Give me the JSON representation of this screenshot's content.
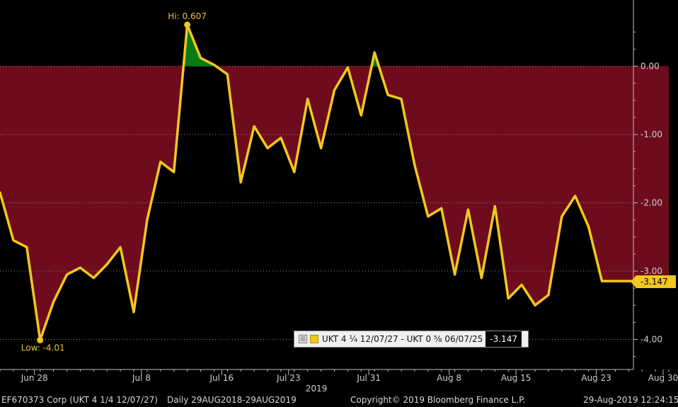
{
  "chart_data": {
    "type": "area",
    "title": "",
    "xlabel": "",
    "ylabel": "",
    "ylim": [
      -4.45,
      0.75
    ],
    "baseline": 0,
    "y_ticks": [
      0,
      -1,
      -2,
      -3,
      -4
    ],
    "y_tick_labels": [
      "0.00",
      "-1.00",
      "-2.00",
      "-3.00",
      "-4.00"
    ],
    "x_ticks": [
      {
        "label": "Jun 28",
        "x": 3
      },
      {
        "label": "Jul 8",
        "x": 11
      },
      {
        "label": "Jul 16",
        "x": 17
      },
      {
        "label": "Jul 23",
        "x": 22
      },
      {
        "label": "Jul 31",
        "x": 28
      },
      {
        "label": "Aug 8",
        "x": 34
      },
      {
        "label": "Aug 15",
        "x": 39
      },
      {
        "label": "Aug 23",
        "x": 45
      },
      {
        "label": "Aug 30",
        "x": 50
      }
    ],
    "x_year_label": "2019",
    "series": [
      {
        "name": "UKT 4 ¼ 12/07/27 - UKT 0 ⅝ 06/07/25",
        "color": "#f0c81e",
        "values": [
          -1.85,
          -2.55,
          -2.65,
          -4.01,
          -3.45,
          -3.05,
          -2.95,
          -3.1,
          -2.9,
          -2.65,
          -3.6,
          -2.25,
          -1.4,
          -1.55,
          0.607,
          0.12,
          0.02,
          -0.12,
          -1.7,
          -0.88,
          -1.2,
          -1.05,
          -1.55,
          -0.48,
          -1.2,
          -0.35,
          -0.02,
          -0.72,
          0.2,
          -0.42,
          -0.48,
          -1.45,
          -2.2,
          -2.08,
          -3.05,
          -2.1,
          -3.1,
          -2.05,
          -3.4,
          -3.2,
          -3.5,
          -3.35,
          -2.2,
          -1.9,
          -2.35,
          -3.147,
          -3.147
        ]
      }
    ],
    "flat_until_x": 50,
    "high": {
      "label": "Hi: 0.607",
      "value": 0.607,
      "index": 14
    },
    "low": {
      "label": "Low: -4.01",
      "value": -4.01,
      "index": 3
    },
    "last_value": "-3.147",
    "fill_below_color": "#6e0c1e",
    "fill_above_color": "#0a7a14",
    "legend_placement": "bottom-right"
  },
  "legend": {
    "expand_icon": "⊞",
    "label": "UKT 4 ¼ 12/07/27 - UKT 0 ⅝ 06/07/25",
    "value": "-3.147"
  },
  "footer": {
    "ticker": "EF670373 Corp (UKT 4 1/4 12/07/27)",
    "range": "Daily 29AUG2018-29AUG2019",
    "copyright": "Copyright© 2019 Bloomberg Finance L.P.",
    "timestamp": "29-Aug-2019 12:24:15"
  }
}
